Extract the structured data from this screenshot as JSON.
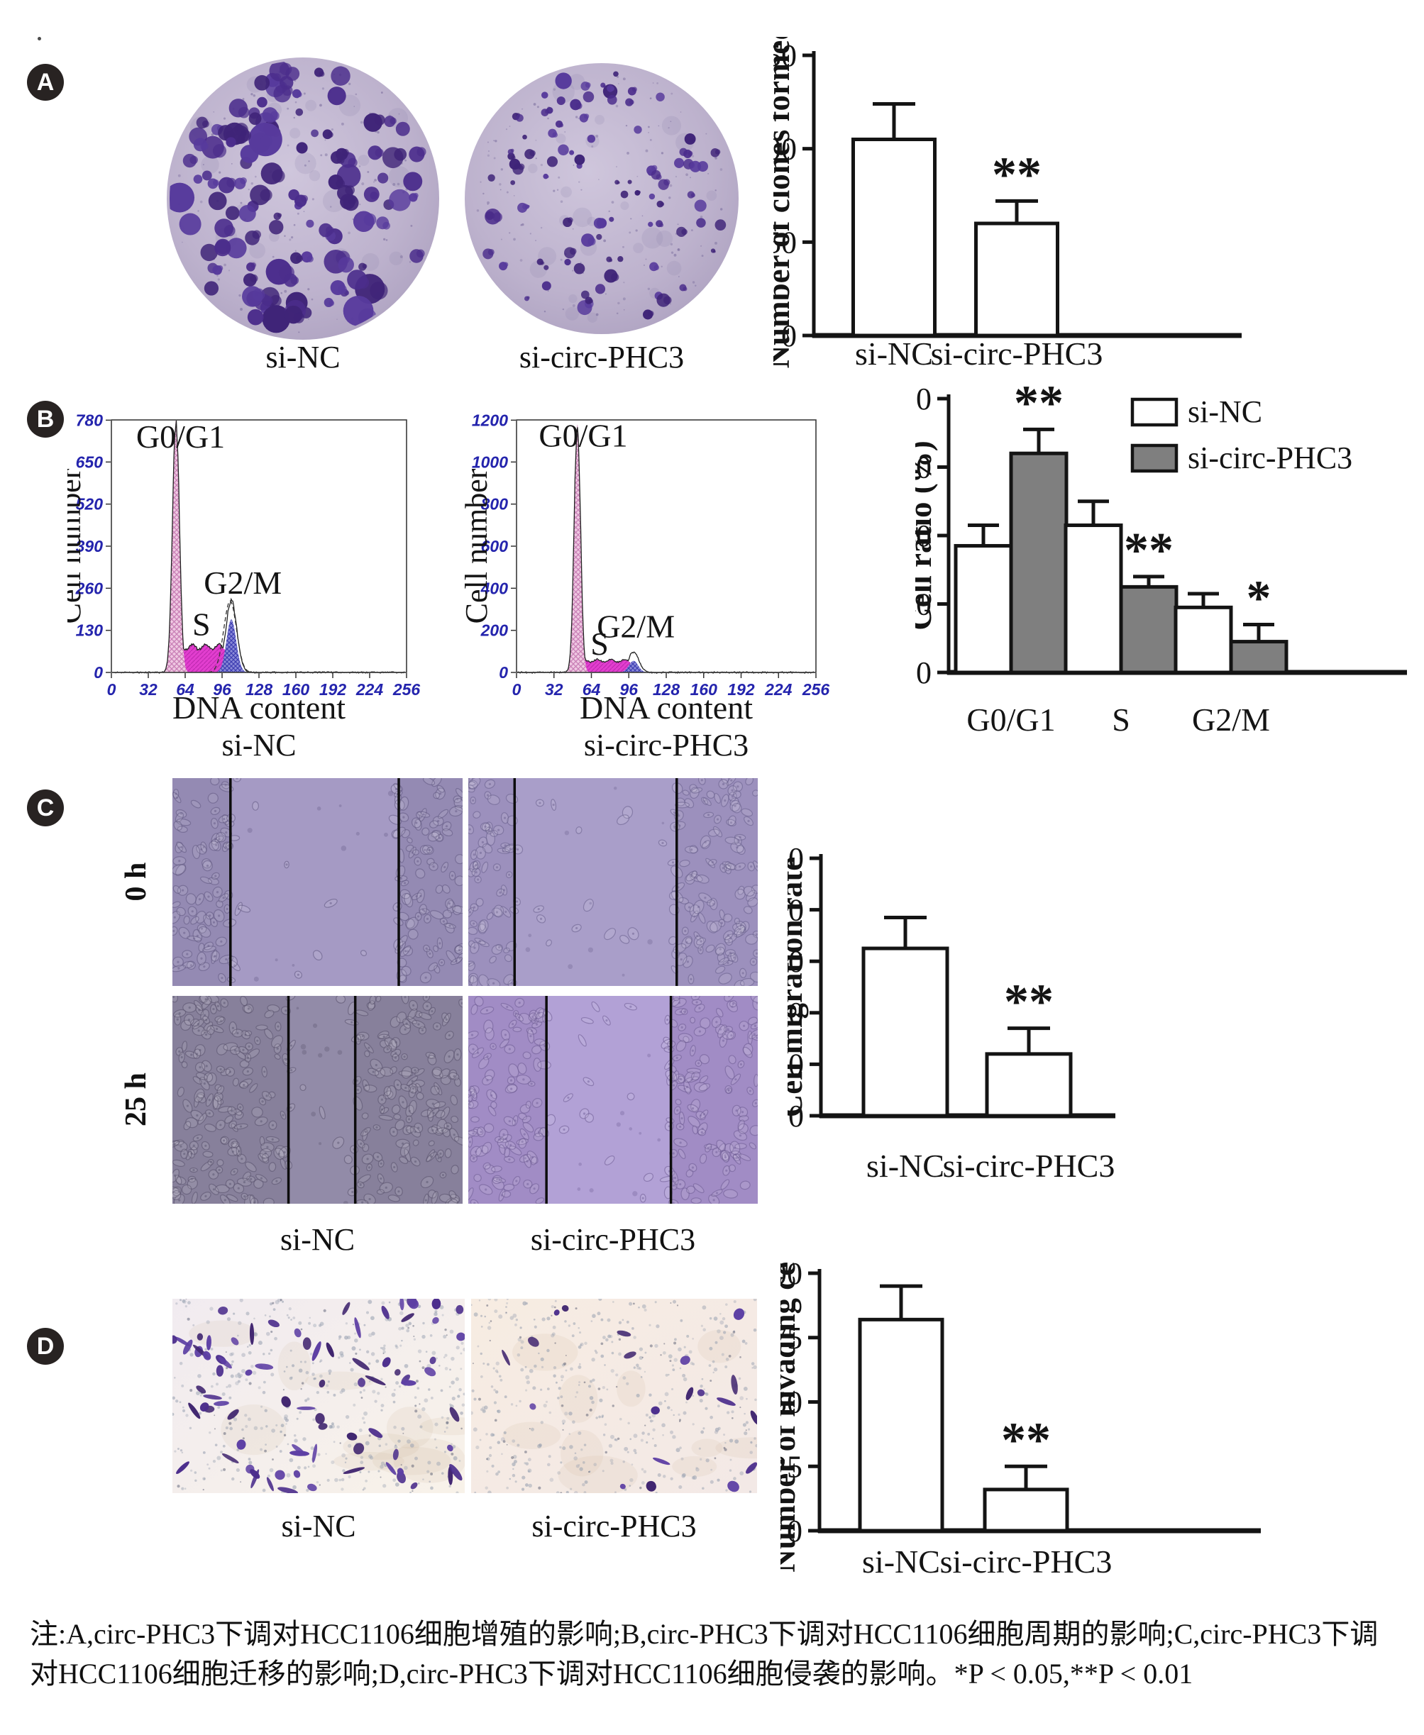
{
  "figure": {
    "badges": [
      {
        "label": "A"
      },
      {
        "label": "B"
      },
      {
        "label": "C"
      },
      {
        "label": "D"
      }
    ],
    "panelA": {
      "dishes": [
        {
          "label": "si-NC",
          "density": "high"
        },
        {
          "label": "si-circ-PHC3",
          "density": "low"
        }
      ]
    },
    "panelC": {
      "row_labels": [
        "0 h",
        "25 h"
      ],
      "col_labels": [
        "si-NC",
        "si-circ-PHC3"
      ],
      "tiles": [
        {
          "name": "0h-si-NC",
          "gap": [
            0.2,
            0.78
          ],
          "base": "#948ab3",
          "cell": "#5f5580",
          "gapfill": "#a59ac4"
        },
        {
          "name": "0h-si-circ-PHC3",
          "gap": [
            0.16,
            0.72
          ],
          "base": "#9c90bd",
          "cell": "#665c8a",
          "gapfill": "#a99ec9"
        },
        {
          "name": "25h-si-NC",
          "gap": [
            0.4,
            0.63
          ],
          "base": "#87809b",
          "cell": "#554f6a",
          "gapfill": "#928ba8"
        },
        {
          "name": "25h-si-circ-PHC3",
          "gap": [
            0.27,
            0.7
          ],
          "base": "#a18cc5",
          "cell": "#6b5992",
          "gapfill": "#b2a1d6"
        }
      ]
    },
    "panelD": {
      "tiles": [
        {
          "label": "si-NC",
          "cells": 80,
          "bg1": "#f1ebf0",
          "bg2": "#f8f2e9"
        },
        {
          "label": "si-circ-PHC3",
          "cells": 20,
          "bg1": "#f7ece2",
          "bg2": "#f3e9e6"
        }
      ]
    },
    "caption": "注:A,circ-PHC3下调对HCC1106细胞增殖的影响;B,circ-PHC3下调对HCC1106细胞周期的影响;C,circ-PHC3下调对HCC1106细胞迁移的影响;D,circ-PHC3下调对HCC1106细胞侵袭的影响。*P < 0.05,**P < 0.01"
  },
  "chart_data": [
    {
      "id": "clones",
      "type": "bar",
      "ylabel": "Number of clones formed",
      "categories": [
        "si-NC",
        "si-circ-PHC3"
      ],
      "values": [
        105,
        60
      ],
      "errors": [
        19,
        12
      ],
      "sig": [
        "",
        "**"
      ],
      "ylim": [
        0,
        150
      ],
      "yticks": [
        0,
        50,
        100,
        150
      ],
      "bar_fill": "#ffffff"
    },
    {
      "id": "flow_sinc",
      "type": "area",
      "subtype": "flow-cytometry-histogram",
      "ylabel": "Cell number",
      "xlabel": "DNA content",
      "sublabel": "si-NC",
      "xlim": [
        0,
        256
      ],
      "xticks": [
        0,
        32,
        64,
        96,
        128,
        160,
        192,
        224,
        256
      ],
      "ylim": [
        0,
        780
      ],
      "yticks": [
        0,
        130,
        260,
        390,
        520,
        650,
        780
      ],
      "g0g1": {
        "label": "G0/G1",
        "mu": 56,
        "sigma": 3.0,
        "amp": 780,
        "label_x": 60,
        "label_y": 730
      },
      "s": {
        "label": "S",
        "from": 56,
        "to": 101,
        "amp": 86,
        "label_x": 78,
        "label_y": 150
      },
      "g2m": {
        "label": "G2/M",
        "mu": 104,
        "sigma": 4.2,
        "amp": 164,
        "outline": 221,
        "dashed": true,
        "label_x": 114,
        "label_y": 278
      }
    },
    {
      "id": "flow_sicirc",
      "type": "area",
      "subtype": "flow-cytometry-histogram",
      "ylabel": "Cell number",
      "xlabel": "DNA content",
      "sublabel": "si-circ-PHC3",
      "xlim": [
        0,
        256
      ],
      "xticks": [
        0,
        32,
        64,
        96,
        128,
        160,
        192,
        224,
        256
      ],
      "ylim": [
        0,
        1200
      ],
      "yticks": [
        0,
        200,
        400,
        600,
        800,
        1000,
        1200
      ],
      "g0g1": {
        "label": "G0/G1",
        "mu": 52,
        "sigma": 2.7,
        "amp": 1180,
        "label_x": 57,
        "label_y": 1128
      },
      "s": {
        "label": "S",
        "from": 55,
        "to": 97,
        "amp": 60,
        "label_x": 71,
        "label_y": 138
      },
      "g2m": {
        "label": "G2/M",
        "mu": 100,
        "sigma": 4.0,
        "amp": 55,
        "outline": 96,
        "dashed": false,
        "label_x": 102,
        "label_y": 220
      }
    },
    {
      "id": "cell_ratio",
      "type": "bar",
      "grouped": true,
      "ylabel": "Cell ratio (%)",
      "categories": [
        "G0/G1",
        "S",
        "G2/M"
      ],
      "ylim": [
        0,
        80
      ],
      "yticks": [
        0,
        20,
        40,
        60,
        80
      ],
      "series": [
        {
          "name": "si-NC",
          "fill": "#ffffff",
          "values": [
            37,
            43,
            19
          ],
          "errors": [
            6,
            7,
            4
          ],
          "sig": [
            "",
            "",
            ""
          ]
        },
        {
          "name": "si-circ-PHC3",
          "fill": "#7f7f7f",
          "values": [
            64,
            25,
            9
          ],
          "errors": [
            7,
            3,
            5
          ],
          "sig": [
            "**",
            "**",
            "*"
          ]
        }
      ],
      "legend": {
        "entries": [
          "si-NC",
          "si-circ-PHC3"
        ],
        "fills": [
          "#ffffff",
          "#7f7f7f"
        ],
        "position": "top-right"
      }
    },
    {
      "id": "migration",
      "type": "bar",
      "ylabel": "Cell migration rate",
      "categories": [
        "si-NC",
        "si-circ-PHC3"
      ],
      "values": [
        65,
        24
      ],
      "errors": [
        12,
        10
      ],
      "sig": [
        "",
        "**"
      ],
      "ylim": [
        0,
        100
      ],
      "yticks": [
        0,
        20,
        40,
        60,
        80,
        100
      ],
      "bar_fill": "#ffffff"
    },
    {
      "id": "invasion",
      "type": "bar",
      "ylabel": "Number of invading cells",
      "categories": [
        "si-NC",
        "si-circ-PHC3"
      ],
      "values": [
        82,
        16
      ],
      "errors": [
        13,
        9
      ],
      "sig": [
        "",
        "**"
      ],
      "ylim": [
        0,
        100
      ],
      "yticks": [
        0,
        25,
        50,
        75,
        100
      ],
      "bar_fill": "#ffffff"
    }
  ],
  "colors": {
    "ink": "#141414",
    "flow_tick_blue": "#2424ad",
    "g0g1_fill": "#efc8e2",
    "g0g1_hatch": "#c77cb4",
    "s_fill": "#e23ecf",
    "s_hatch": "#c02ab2",
    "g2m_fill": "#8b8bd8",
    "g2m_hatch": "#3d3db2",
    "dish_bg": "#bcb1cc",
    "colony_purple": "#4b2d8c",
    "invasion_cell_purple": "#47287e",
    "pore_gray": "#97a0b0",
    "legend_gray": "#7f7f7f"
  }
}
